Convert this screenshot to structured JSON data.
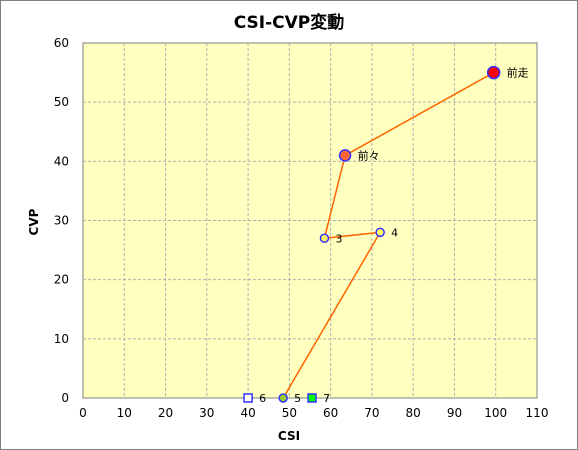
{
  "chart_data": {
    "type": "scatter",
    "title": "CSI-CVP変動",
    "xlabel": "CSI",
    "ylabel": "CVP",
    "xlim": [
      0,
      110
    ],
    "ylim": [
      0,
      60
    ],
    "xticks": [
      0,
      10,
      20,
      30,
      40,
      50,
      60,
      70,
      80,
      90,
      100,
      110
    ],
    "yticks": [
      0,
      10,
      20,
      30,
      40,
      50,
      60
    ],
    "grid": true,
    "plot_background": "#ffffc0",
    "grid_color": "#b0b0b0",
    "line_color": "#ff6600",
    "points": [
      {
        "label": "前走",
        "x": 99.5,
        "y": 55,
        "marker": "circle",
        "size": "large",
        "fill": "#ff0000",
        "stroke": "#3333ff",
        "in_line": true
      },
      {
        "label": "前々",
        "x": 63.5,
        "y": 41,
        "marker": "circle",
        "size": "medium",
        "fill": "#ff6633",
        "stroke": "#3333ff",
        "in_line": true
      },
      {
        "label": "3",
        "x": 58.5,
        "y": 27,
        "marker": "circle",
        "size": "small",
        "fill": "#ffff66",
        "stroke": "#3333ff",
        "in_line": true
      },
      {
        "label": "4",
        "x": 72,
        "y": 28,
        "marker": "circle",
        "size": "small",
        "fill": "#ffff66",
        "stroke": "#3333ff",
        "in_line": true
      },
      {
        "label": "5",
        "x": 48.5,
        "y": 0,
        "marker": "circle",
        "size": "small",
        "fill": "#99cc33",
        "stroke": "#3333ff",
        "in_line": true
      },
      {
        "label": "6",
        "x": 40,
        "y": 0,
        "marker": "square",
        "size": "small",
        "fill": "#ffffff",
        "stroke": "#3333ff",
        "in_line": false
      },
      {
        "label": "7",
        "x": 55.5,
        "y": 0,
        "marker": "square",
        "size": "small",
        "fill": "#00ff00",
        "stroke": "#3333ff",
        "in_line": false
      }
    ]
  }
}
